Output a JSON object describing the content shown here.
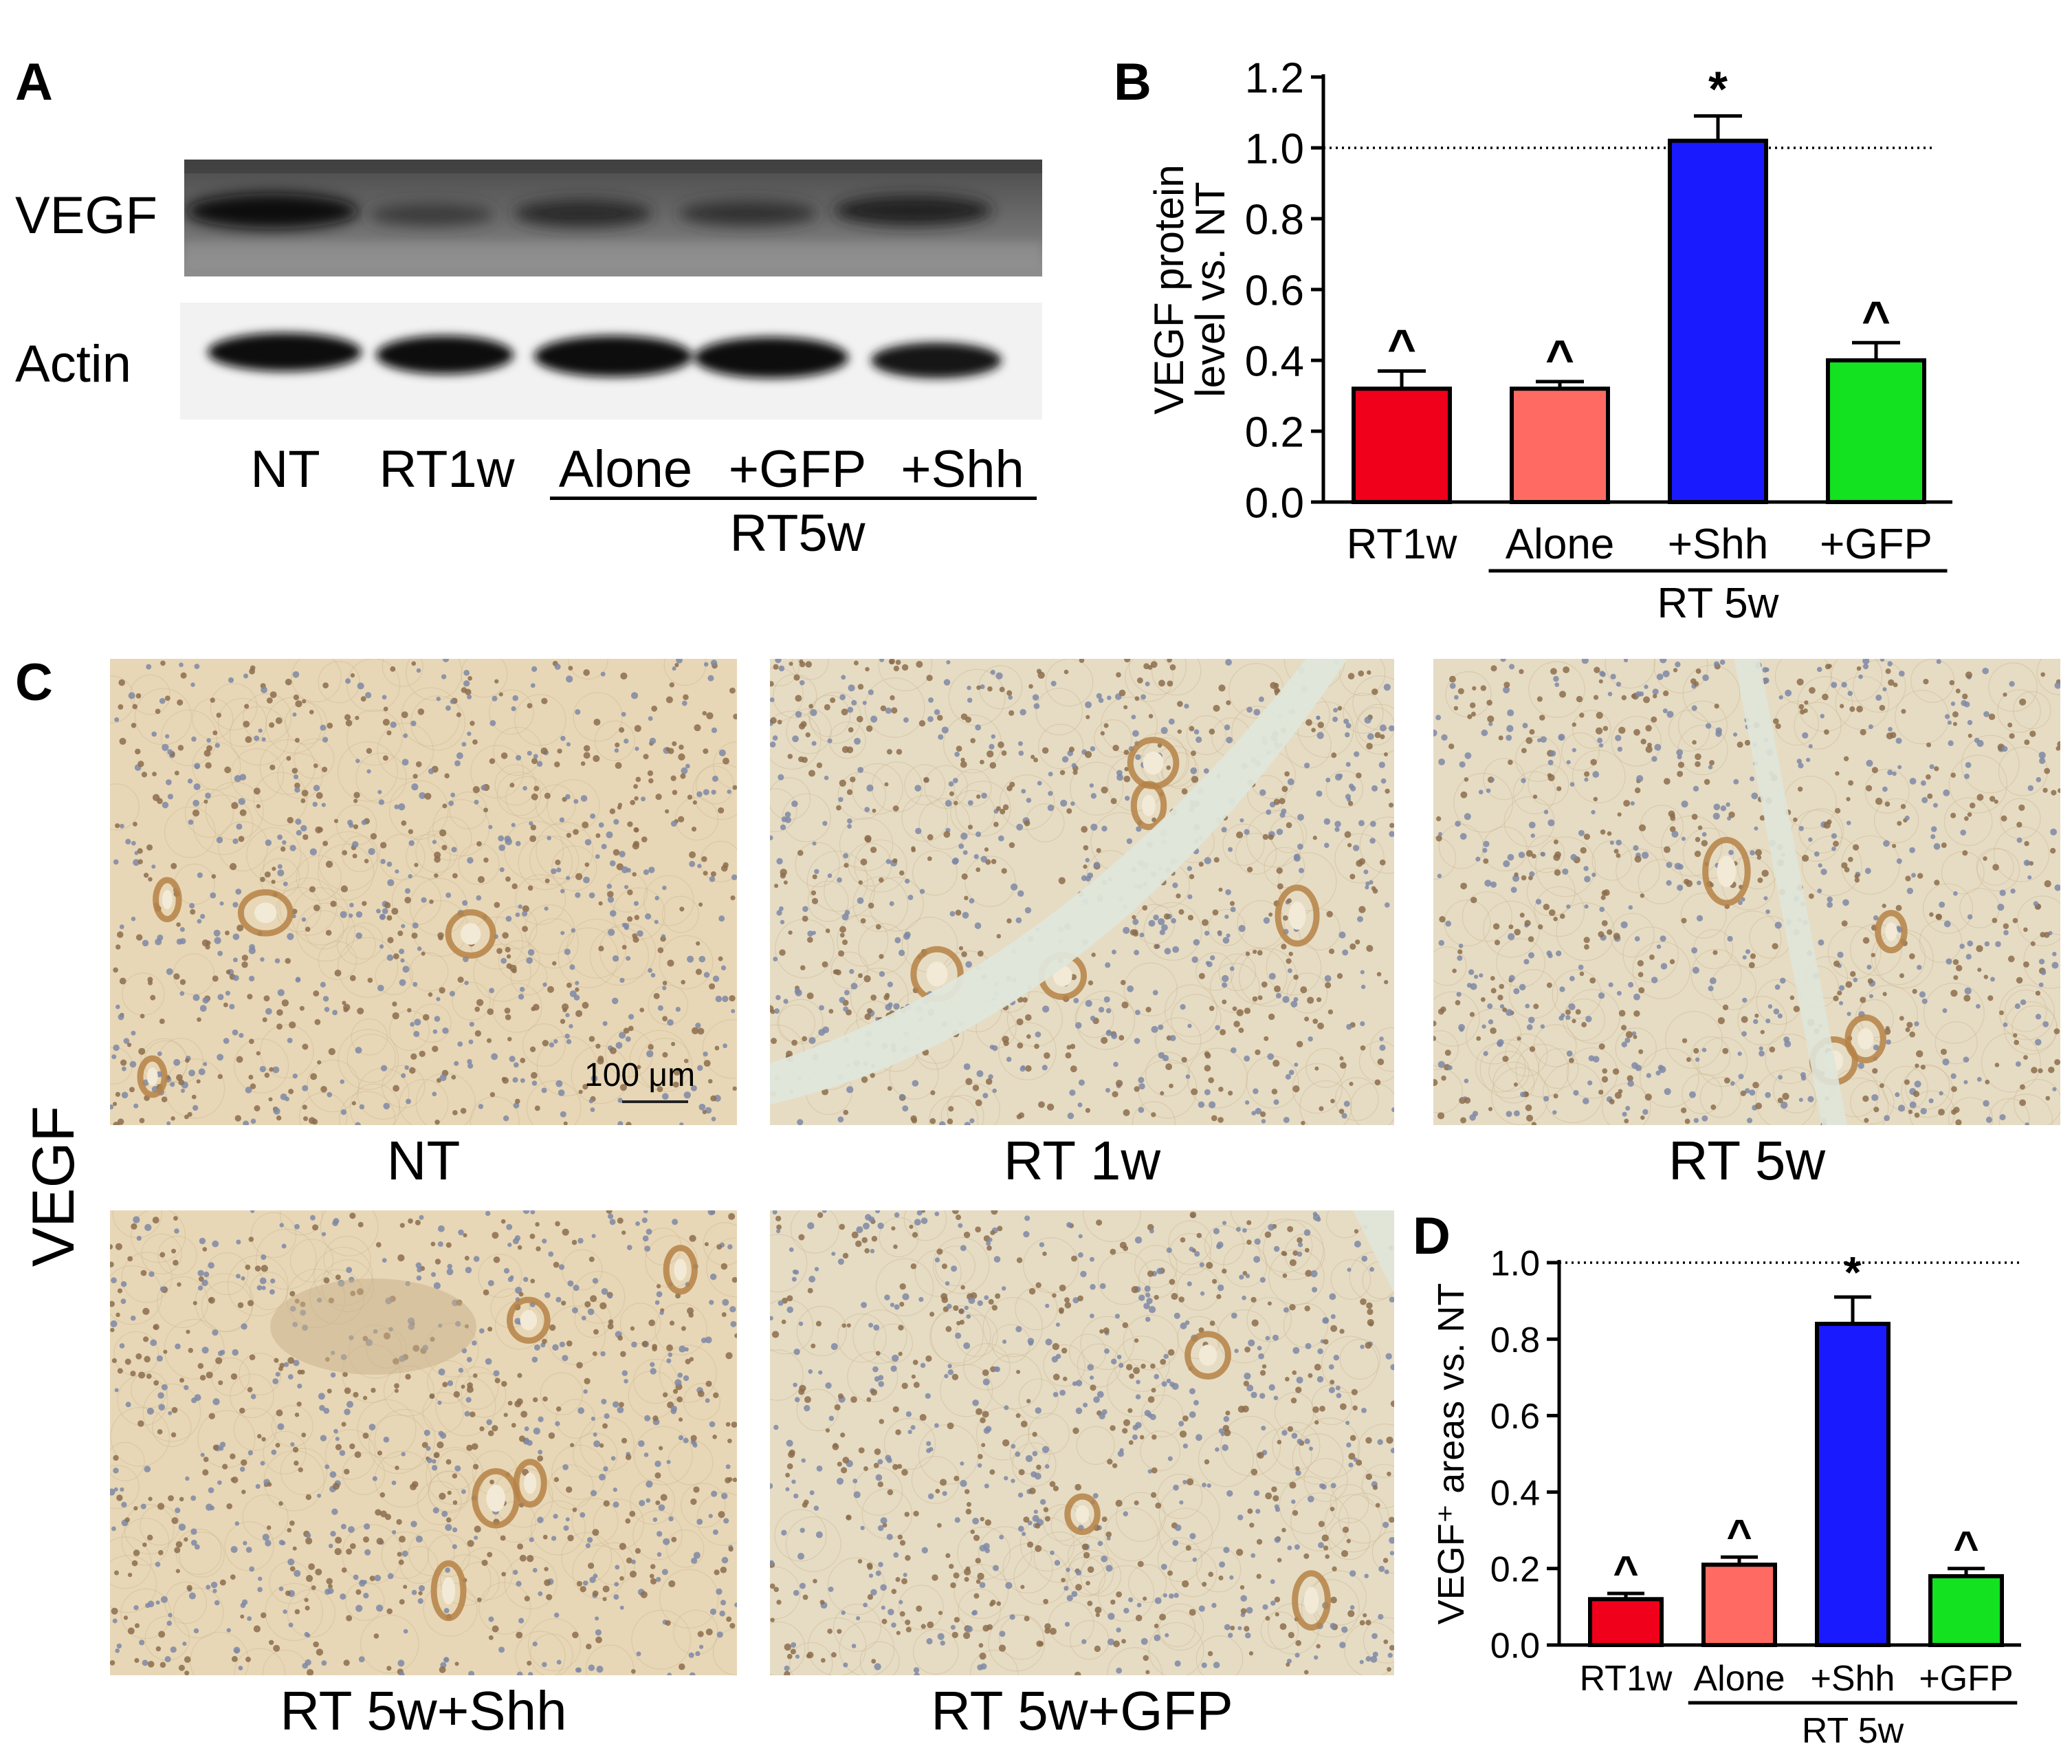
{
  "panels": {
    "A": "A",
    "B": "B",
    "C": "C",
    "D": "D"
  },
  "blot": {
    "rows": [
      {
        "label": "VEGF"
      },
      {
        "label": "Actin"
      }
    ],
    "lanes": [
      "NT",
      "RT1w",
      "Alone",
      "+GFP",
      "+Shh"
    ],
    "group_label": "RT5w"
  },
  "micrographs": {
    "row_label": "VEGF",
    "scale_bar": "100 μm",
    "captions": [
      "NT",
      "RT 1w",
      "RT 5w",
      "RT 5w+Shh",
      "RT 5w+GFP"
    ]
  },
  "chart_data": [
    {
      "panel": "B",
      "type": "bar",
      "categories": [
        "RT1w",
        "Alone",
        "+Shh",
        "+GFP"
      ],
      "values": [
        0.32,
        0.32,
        1.02,
        0.4
      ],
      "errors": [
        0.05,
        0.02,
        0.07,
        0.05
      ],
      "markers": [
        "^",
        "^",
        "*",
        "^"
      ],
      "colors": [
        "#f0001a",
        "#ff6b62",
        "#1a1aff",
        "#12e21f"
      ],
      "ylabel": "VEGF protein\nlevel vs. NT",
      "ylim": [
        0,
        1.2
      ],
      "yticks": [
        "0.0",
        "0.2",
        "0.4",
        "0.6",
        "0.8",
        "1.0",
        "1.2"
      ],
      "reference_line": 1.0,
      "group_label": "RT 5w"
    },
    {
      "panel": "D",
      "type": "bar",
      "categories": [
        "RT1w",
        "Alone",
        "+Shh",
        "+GFP"
      ],
      "values": [
        0.12,
        0.21,
        0.84,
        0.18
      ],
      "errors": [
        0.015,
        0.02,
        0.07,
        0.02
      ],
      "markers": [
        "^",
        "^",
        "*",
        "^"
      ],
      "colors": [
        "#f0001a",
        "#ff6b62",
        "#1a1aff",
        "#12e21f"
      ],
      "ylabel": "VEGF⁺ areas vs. NT",
      "ylim": [
        0,
        1.0
      ],
      "yticks": [
        "0.0",
        "0.2",
        "0.4",
        "0.6",
        "0.8",
        "1.0"
      ],
      "reference_line": 1.0,
      "group_label": "RT 5w"
    }
  ]
}
